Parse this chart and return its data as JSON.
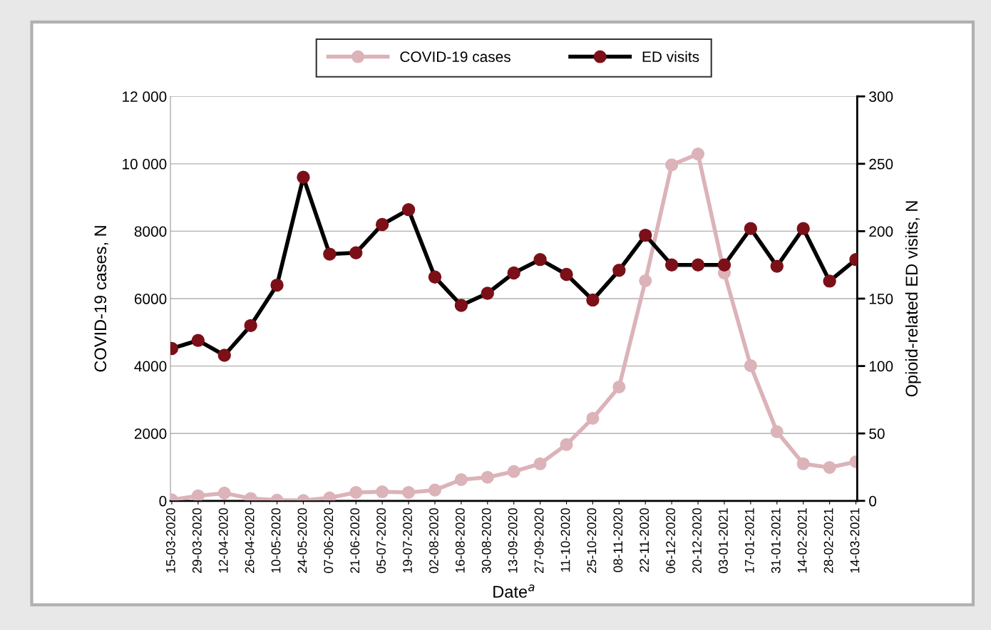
{
  "chart_data": {
    "type": "line",
    "categories": [
      "15-03-2020",
      "29-03-2020",
      "12-04-2020",
      "26-04-2020",
      "10-05-2020",
      "24-05-2020",
      "07-06-2020",
      "21-06-2020",
      "05-07-2020",
      "19-07-2020",
      "02-08-2020",
      "16-08-2020",
      "30-08-2020",
      "13-09-2020",
      "27-09-2020",
      "11-10-2020",
      "25-10-2020",
      "08-11-2020",
      "22-11-2020",
      "06-12-2020",
      "20-12-2020",
      "03-01-2021",
      "17-01-2021",
      "31-01-2021",
      "14-02-2021",
      "28-02-2021",
      "14-03-2021"
    ],
    "series": [
      {
        "name": "COVID-19 cases",
        "color": "#dbb3b8",
        "values": [
          30,
          150,
          230,
          70,
          20,
          10,
          90,
          250,
          270,
          250,
          320,
          630,
          700,
          870,
          1100,
          1670,
          2450,
          3380,
          6530,
          9970,
          10290,
          6760,
          4010,
          2050,
          1100,
          990,
          1160
        ]
      },
      {
        "name": "ED visits",
        "color": "#000000",
        "colors": [
          "#7b1019",
          "#7b1019",
          "#7b1019",
          "#7b1019",
          "#7b1019",
          "#7b1019",
          "#7b1019",
          "#7b1019",
          "#7b1019",
          "#7b1019",
          "#7b1019",
          "#7b1019",
          "#7b1019",
          "#7b1019",
          "#7b1019",
          "#7b1019",
          "#7b1019",
          "#7b1019",
          "#7b1019",
          "#7b1019",
          "#7b1019",
          "#7b1019",
          "#7b1019",
          "#7b1019",
          "#7b1019",
          "#7b1019",
          "#7b1019"
        ],
        "axis": "y2",
        "values": [
          113,
          119,
          108,
          130,
          160,
          240,
          183,
          184,
          205,
          216,
          166,
          145,
          154,
          169,
          179,
          168,
          149,
          171,
          197,
          175,
          175,
          175,
          202,
          174,
          202,
          163,
          179
        ]
      }
    ],
    "xlabel": "Date$^{a}$",
    "ylabel": "COVID-19 cases, N",
    "y2label": "Opioid-related ED visits, N",
    "ylim": [
      0,
      12000
    ],
    "yticks": [
      0,
      2000,
      4000,
      6000,
      8000,
      {
        "value": 10000,
        "label": "10 000"
      },
      {
        "value": 12000,
        "label": "12 000"
      }
    ],
    "y2lim": [
      0,
      300
    ],
    "y2ticks": [
      0,
      50,
      100,
      150,
      200,
      250,
      300
    ],
    "grid": "y",
    "legend": "top",
    "marker": "circle",
    "line_style": "solid"
  }
}
